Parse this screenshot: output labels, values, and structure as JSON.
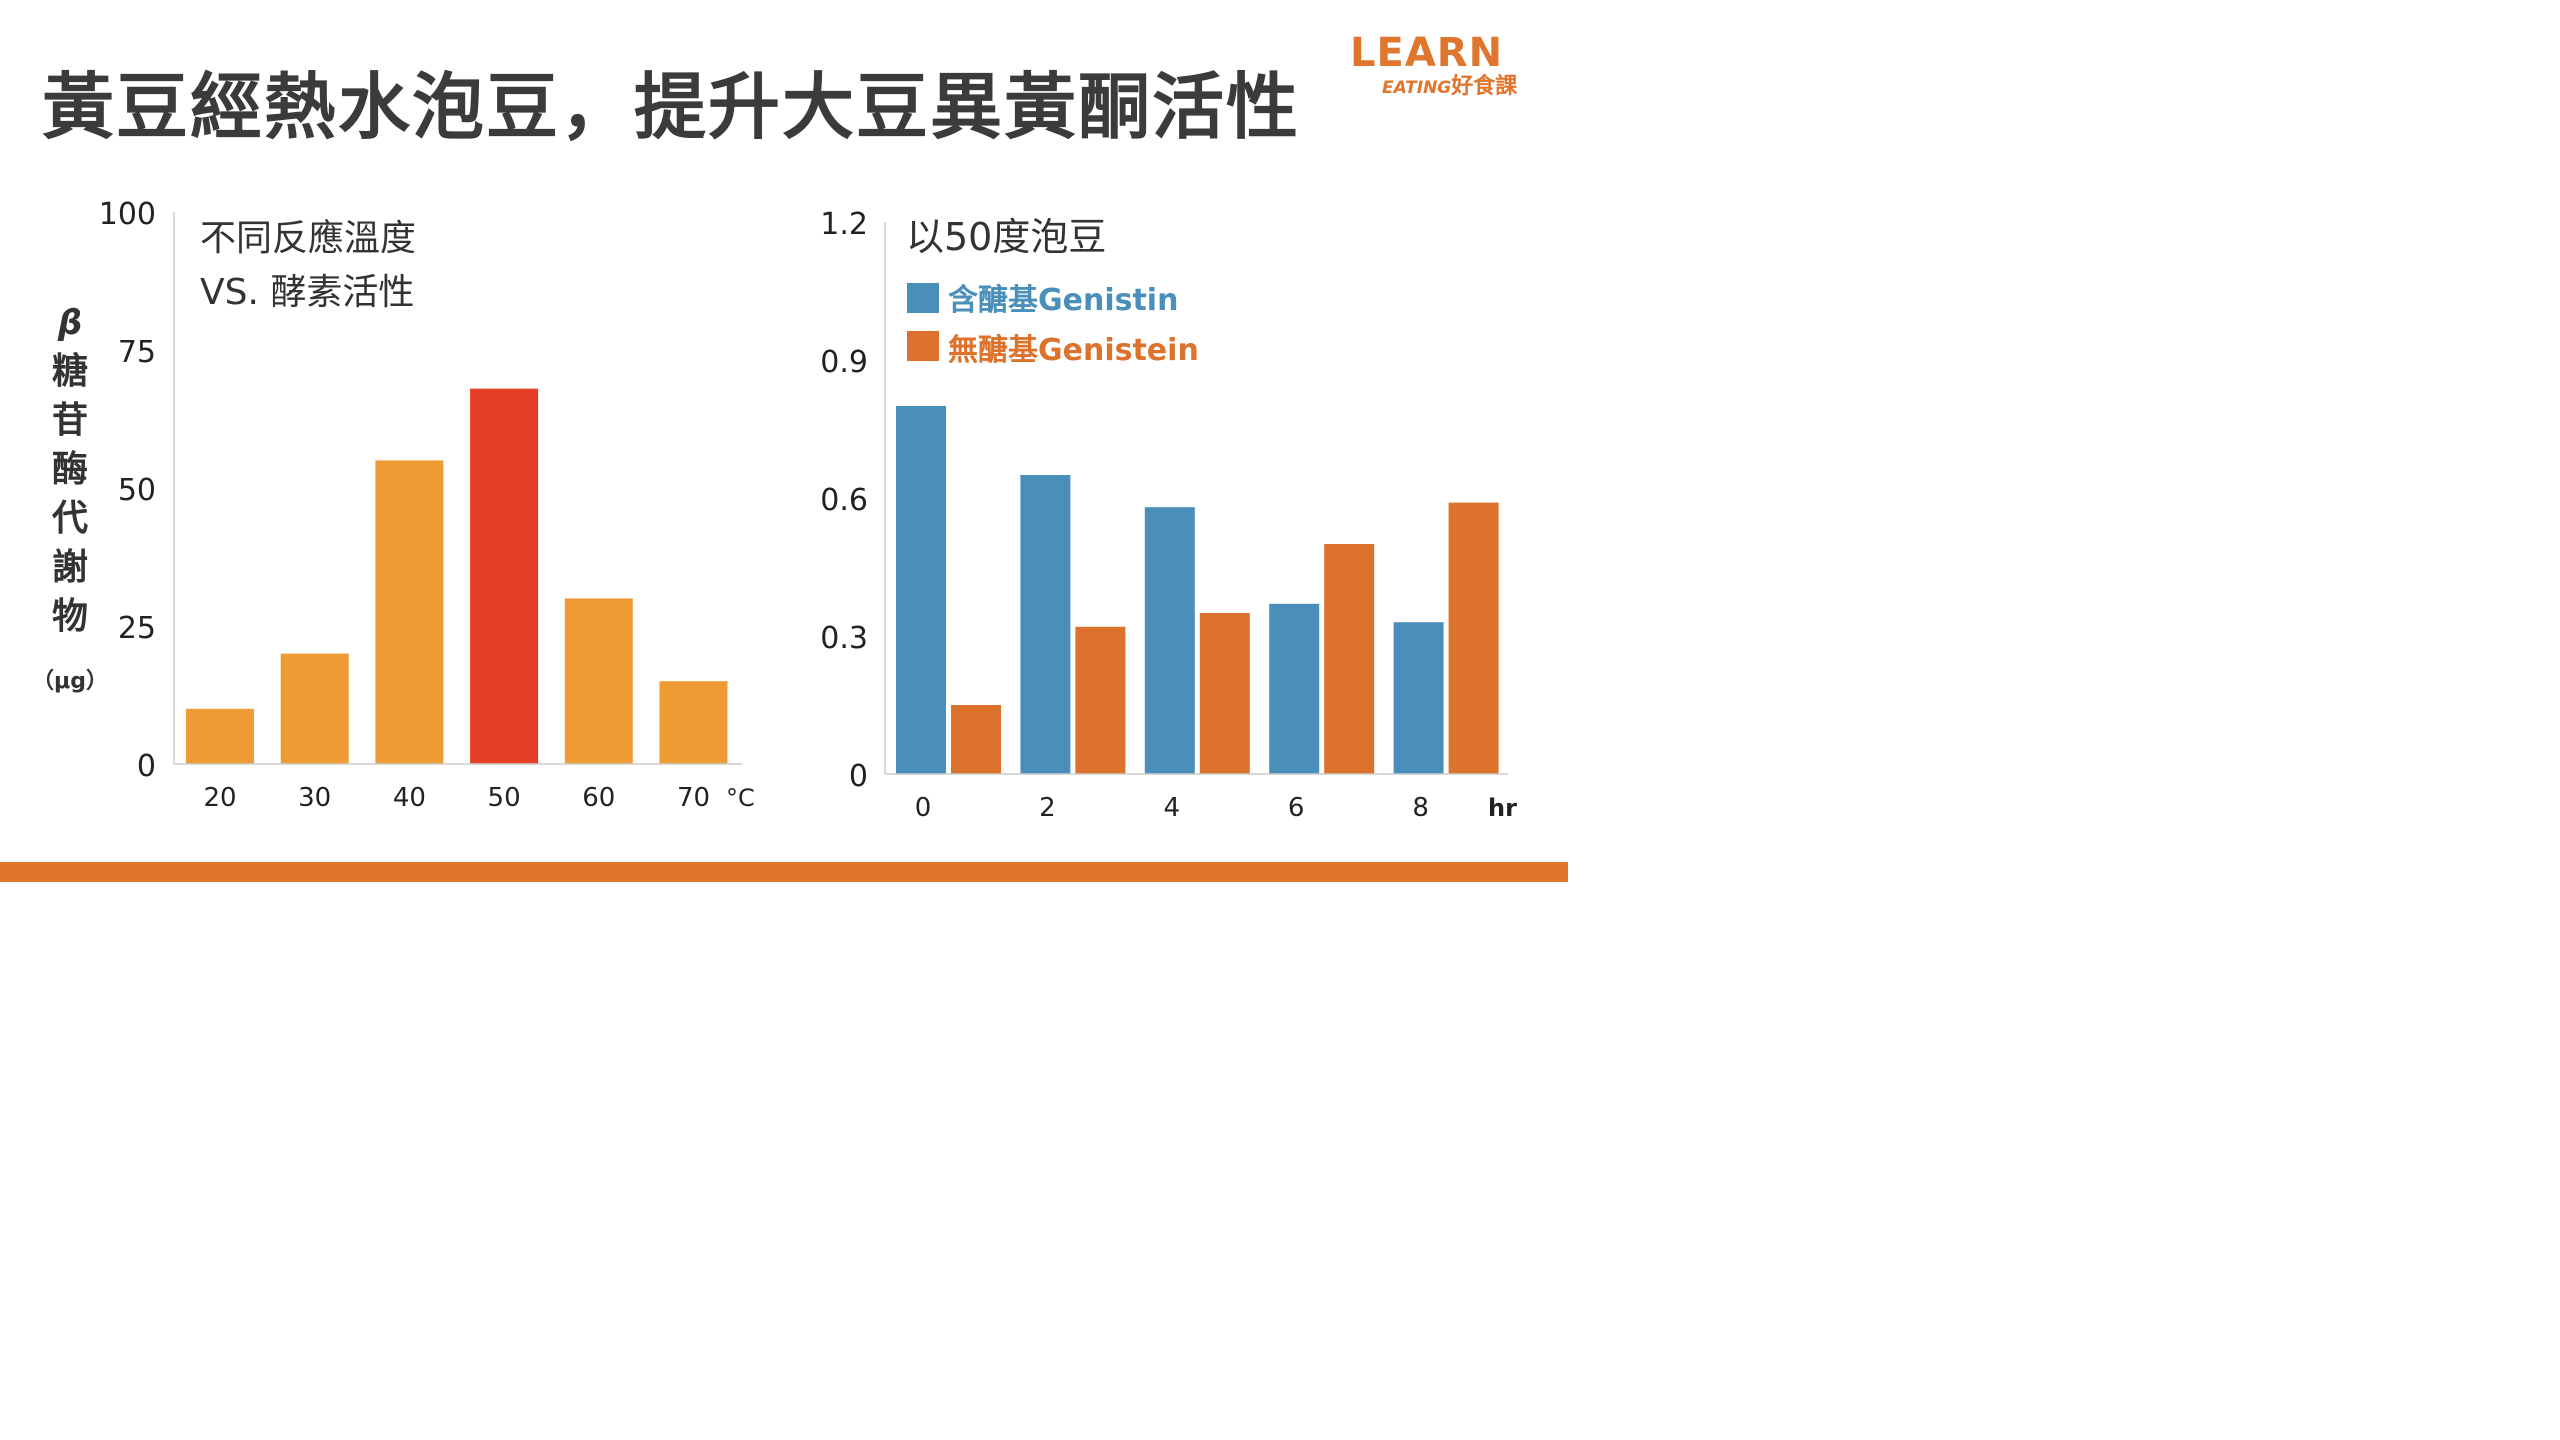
{
  "title": "黃豆經熱水泡豆，提升大豆異黃酮活性",
  "logo": {
    "line1": "LEARN",
    "line2a": "EATING",
    "line2b": "好食課"
  },
  "colors": {
    "accent": "#e0762e",
    "orange_bar": "#ee9b35",
    "red_bar": "#e53f27",
    "blue": "#4a8fba",
    "orange_series": "#dd722c"
  },
  "chart_data": [
    {
      "type": "bar",
      "title_line1": "不同反應溫度",
      "title_line2": "VS. 酵素活性",
      "ylabel_chars": [
        "β",
        "糖",
        "苷",
        "酶",
        "代",
        "謝",
        "物"
      ],
      "yunit": "（μg）",
      "xunit": "°C",
      "categories": [
        "20",
        "30",
        "40",
        "50",
        "60",
        "70"
      ],
      "values": [
        10,
        20,
        55,
        68,
        30,
        15
      ],
      "highlight_index": 3,
      "ylim": [
        0,
        100
      ],
      "yticks": [
        "0",
        "25",
        "50",
        "75",
        "100"
      ]
    },
    {
      "type": "bar",
      "title": "以50度泡豆",
      "xunit": "hr",
      "categories": [
        "0",
        "2",
        "4",
        "6",
        "8"
      ],
      "series": [
        {
          "name": "含醣基Genistin",
          "values": [
            0.8,
            0.65,
            0.58,
            0.37,
            0.33
          ]
        },
        {
          "name": "無醣基Genistein",
          "values": [
            0.15,
            0.32,
            0.35,
            0.5,
            0.59
          ]
        }
      ],
      "ylim": [
        0,
        1.2
      ],
      "yticks": [
        "0",
        "0.3",
        "0.6",
        "0.9",
        "1.2"
      ]
    }
  ]
}
